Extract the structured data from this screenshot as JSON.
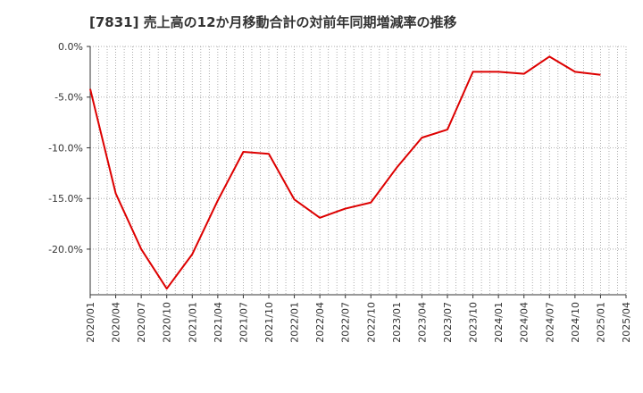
{
  "chart_data": {
    "type": "line",
    "title": "[7831]  売上高の12か月移動合計の対前年同期増減率の推移",
    "xlabel": "",
    "ylabel": "",
    "ylim": [
      -24.5,
      0
    ],
    "y_ticks": [
      0,
      -5,
      -10,
      -15,
      -20
    ],
    "y_tick_labels": [
      "0.0%",
      "-5.0%",
      "-10.0%",
      "-15.0%",
      "-20.0%"
    ],
    "x_tick_labels": [
      "2020/01",
      "2020/04",
      "2020/07",
      "2020/10",
      "2021/01",
      "2021/04",
      "2021/07",
      "2021/10",
      "2022/01",
      "2022/04",
      "2022/07",
      "2022/10",
      "2023/01",
      "2023/04",
      "2023/07",
      "2023/10",
      "2024/01",
      "2024/04",
      "2024/07",
      "2024/10",
      "2025/01",
      "2025/04"
    ],
    "grid": true,
    "series": [
      {
        "name": "増減率",
        "color": "#dd0000",
        "x": [
          "2020/01",
          "2020/04",
          "2020/07",
          "2020/10",
          "2021/01",
          "2021/04",
          "2021/07",
          "2021/10",
          "2022/01",
          "2022/04",
          "2022/07",
          "2022/10",
          "2023/01",
          "2023/04",
          "2023/07",
          "2023/10",
          "2024/01",
          "2024/04",
          "2024/07",
          "2024/10",
          "2025/01"
        ],
        "values": [
          -4.2,
          -14.5,
          -20.0,
          -23.9,
          -20.5,
          -15.2,
          -10.4,
          -10.6,
          -15.1,
          -16.9,
          -16.0,
          -15.4,
          -12.0,
          -9.0,
          -8.2,
          -2.5,
          -2.5,
          -2.7,
          -1.0,
          -2.5,
          -2.8
        ]
      }
    ]
  }
}
